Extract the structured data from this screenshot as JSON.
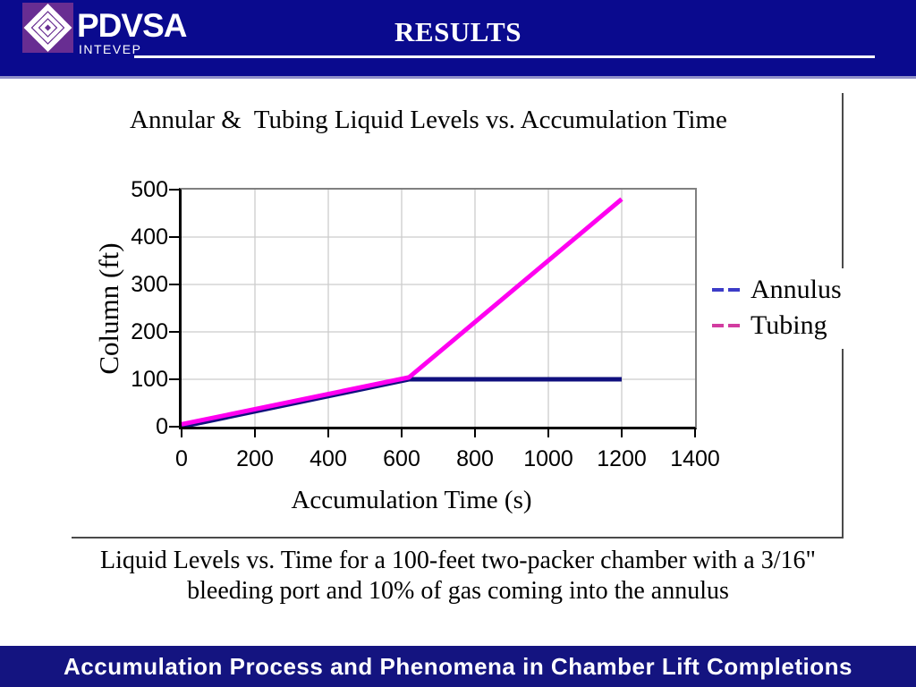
{
  "header": {
    "logo_text": "PDVSA",
    "logo_subtext": "INTEVEP",
    "title": "RESULTS"
  },
  "colors": {
    "header_bg": "#0a0a8e",
    "header_strip": "#8f8fc8",
    "logo_bg": "#682d92",
    "footer_bg": "#141480",
    "plot_border_gray": "#808080",
    "grid": "#cccccc",
    "axis": "#000000"
  },
  "chart_data": {
    "type": "line",
    "title": "Annular &  Tubing Liquid Levels vs. Accumulation Time",
    "xlabel": "Accumulation Time (s)",
    "ylabel": "Column (ft)",
    "xlim": [
      0,
      1400
    ],
    "ylim": [
      0,
      500
    ],
    "xticks": [
      0,
      200,
      400,
      600,
      800,
      1000,
      1200,
      1400
    ],
    "yticks": [
      0,
      100,
      200,
      300,
      400,
      500
    ],
    "grid": true,
    "legend": {
      "position": "right-outside",
      "items": [
        {
          "label": "Annulus",
          "dash_color": "#3c3cc8"
        },
        {
          "label": "Tubing",
          "dash_color": "#d23ca0"
        }
      ]
    },
    "series": [
      {
        "name": "Annulus",
        "color": "#10107e",
        "points": [
          [
            0,
            0
          ],
          [
            620,
            100
          ],
          [
            1200,
            100
          ]
        ]
      },
      {
        "name": "Tubing",
        "color": "#ff00f0",
        "points": [
          [
            0,
            5
          ],
          [
            620,
            104
          ],
          [
            1200,
            480
          ]
        ]
      }
    ]
  },
  "caption": {
    "line1": "Liquid Levels vs. Time for a 100-feet two-packer chamber with a 3/16\"",
    "line2": "bleeding port and 10% of gas coming into the annulus"
  },
  "footer": {
    "title": "Accumulation Process and Phenomena in Chamber Lift Completions"
  }
}
